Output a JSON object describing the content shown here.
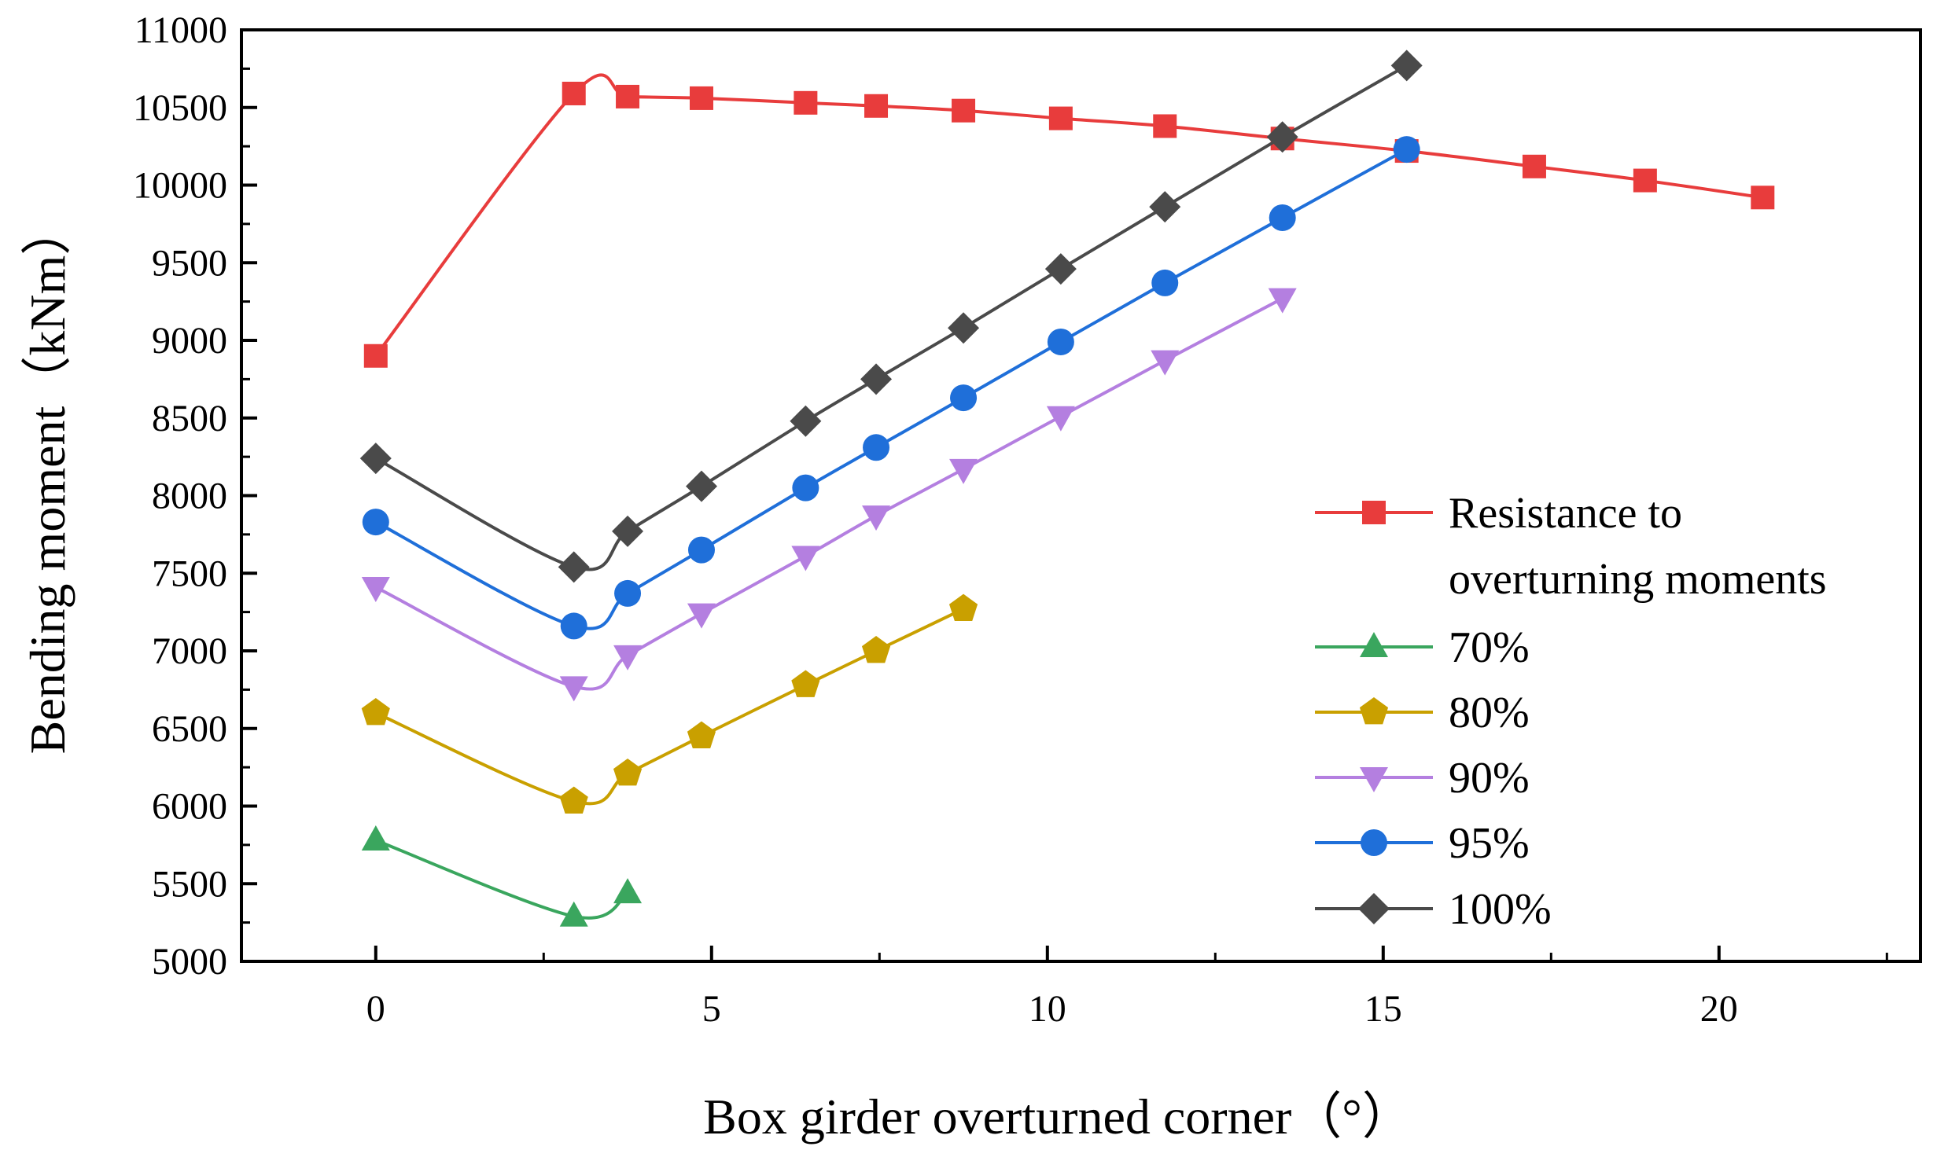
{
  "chart_data": {
    "type": "line",
    "title": "",
    "xlabel": "Box girder overturned corner（°）",
    "ylabel": "Bending moment（kNm）",
    "xlim": [
      -2,
      23
    ],
    "ylim": [
      5000,
      11000
    ],
    "xticks": [
      0,
      5,
      10,
      15,
      20
    ],
    "yticks": [
      5000,
      5500,
      6000,
      6500,
      7000,
      7500,
      8000,
      8500,
      9000,
      9500,
      10000,
      10500,
      11000
    ],
    "xtick_labels": [
      "0",
      "5",
      "10",
      "15",
      "20"
    ],
    "ytick_labels": [
      "5000",
      "5500",
      "6000",
      "6500",
      "7000",
      "7500",
      "8000",
      "8500",
      "9000",
      "9500",
      "10000",
      "10500",
      "11000"
    ],
    "grid": false,
    "legend_position": "right",
    "series": [
      {
        "name": "Resistance to overturning moments",
        "legend_lines": [
          "Resistance to",
          "overturning moments"
        ],
        "color": "#E83C3C",
        "marker": "square",
        "x": [
          0,
          2.95,
          3.75,
          4.85,
          6.4,
          7.45,
          8.75,
          10.2,
          11.75,
          13.5,
          15.35,
          17.25,
          18.9,
          20.65
        ],
        "y": [
          8900,
          10590,
          10570,
          10560,
          10530,
          10510,
          10480,
          10430,
          10380,
          10300,
          10220,
          10120,
          10030,
          9920
        ]
      },
      {
        "name": "70%",
        "color": "#3AA65E",
        "marker": "triangle-up",
        "x": [
          0,
          2.95,
          3.75
        ],
        "y": [
          5780,
          5290,
          5440
        ]
      },
      {
        "name": "80%",
        "color": "#C9A000",
        "marker": "pentagon",
        "x": [
          0,
          2.95,
          3.75,
          4.85,
          6.4,
          7.45,
          8.75
        ],
        "y": [
          6600,
          6030,
          6210,
          6450,
          6780,
          7000,
          7270
        ]
      },
      {
        "name": "90%",
        "color": "#B47FE0",
        "marker": "triangle-down",
        "x": [
          0,
          2.95,
          3.75,
          4.85,
          6.4,
          7.45,
          8.75,
          10.2,
          11.75,
          13.5
        ],
        "y": [
          7410,
          6770,
          6970,
          7240,
          7610,
          7870,
          8170,
          8510,
          8870,
          9270
        ]
      },
      {
        "name": "95%",
        "color": "#1F6FD9",
        "marker": "circle",
        "x": [
          0,
          2.95,
          3.75,
          4.85,
          6.4,
          7.45,
          8.75,
          10.2,
          11.75,
          13.5,
          15.35
        ],
        "y": [
          7830,
          7160,
          7370,
          7650,
          8050,
          8310,
          8630,
          8990,
          9370,
          9790,
          10230
        ]
      },
      {
        "name": "100%",
        "color": "#4A4A4A",
        "marker": "diamond",
        "x": [
          0,
          2.95,
          3.75,
          4.85,
          6.4,
          7.45,
          8.75,
          10.2,
          11.75,
          13.5,
          15.35
        ],
        "y": [
          8240,
          7540,
          7770,
          8060,
          8480,
          8750,
          9080,
          9460,
          9860,
          10310,
          10770
        ]
      }
    ]
  }
}
